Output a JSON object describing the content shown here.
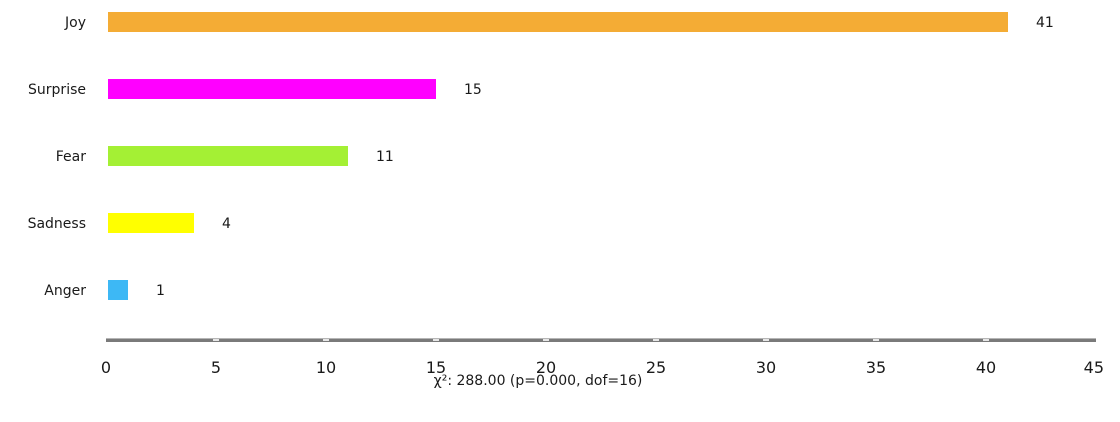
{
  "chart_data": {
    "type": "bar",
    "orientation": "horizontal",
    "categories": [
      "Joy",
      "Surprise",
      "Fear",
      "Sadness",
      "Anger"
    ],
    "values": [
      41,
      15,
      11,
      4,
      1
    ],
    "colors": [
      "#F4AC35",
      "#FF00FF",
      "#A4F034",
      "#FFFF00",
      "#3DB8F5"
    ],
    "xlim": [
      0,
      45
    ],
    "xticks": [
      0,
      5,
      10,
      15,
      20,
      25,
      30,
      35,
      40,
      45
    ],
    "grid": false,
    "footer": "χ²: 288.00 (p=0.000, dof=16)"
  }
}
